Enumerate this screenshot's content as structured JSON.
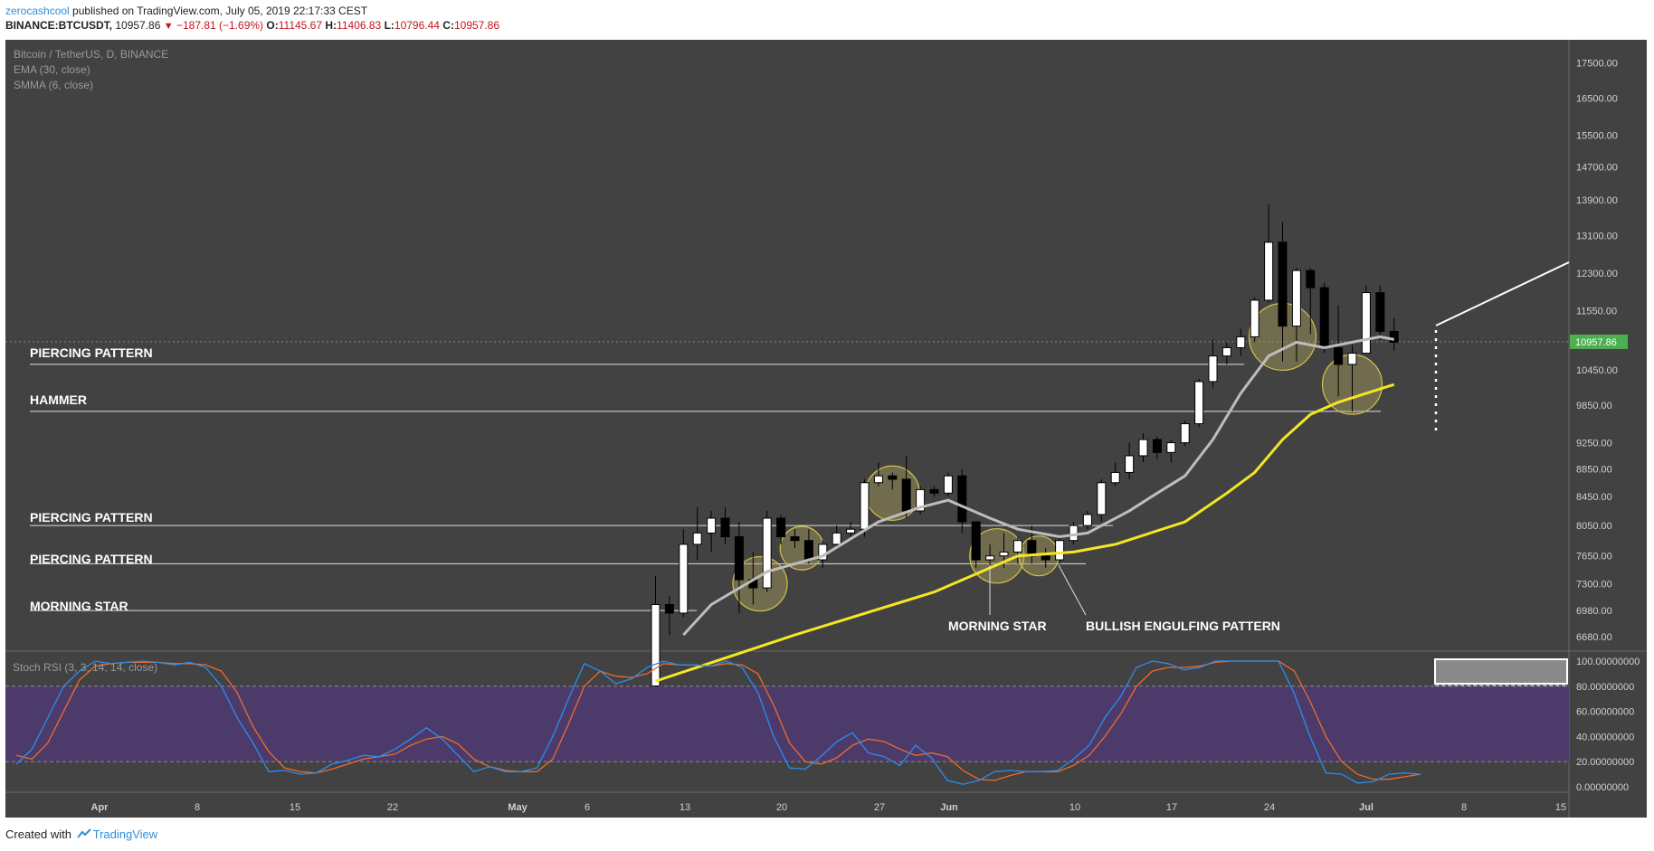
{
  "header": {
    "author": "zerocashcool",
    "published_text": " published on TradingView.com, July 05, 2019 22:17:33 CEST",
    "symbol": "BINANCE:BTCUSDT,",
    "last": "10957.86",
    "change": "−187.81 (−1.69%)",
    "o_label": "O:",
    "o": "11145.67",
    "h_label": "H:",
    "h": "11406.83",
    "l_label": "L:",
    "l": "10796.44",
    "c_label": "C:",
    "c": "10957.86"
  },
  "legend": {
    "title": "Bitcoin / TetherUS, D, BINANCE",
    "ema": "EMA (30, close)",
    "smma": "SMMA (6, close)",
    "stoch": "Stoch RSI (3, 3, 14, 14, close)"
  },
  "annotations": {
    "piercing1": "PIERCING PATTERN",
    "hammer": "HAMMER",
    "piercing2": "PIERCING PATTERN",
    "piercing3": "PIERCING PATTERN",
    "morning_star_left": "MORNING STAR",
    "morning_star_bottom": "MORNING STAR",
    "bullish_engulfing": "BULLISH ENGULFING PATTERN"
  },
  "price_badge": "10957.86",
  "footer": {
    "created_with": "Created with",
    "brand": "TradingView"
  },
  "colors": {
    "panel_bg": "#424242",
    "candle_up": "#ffffff",
    "candle_down": "#000000",
    "ema": "#f5e625",
    "smma": "#bdbdbd",
    "stoch_k": "#2c8cf0",
    "stoch_d": "#f06a2a",
    "stoch_band": "#4c3b6a",
    "badge": "#4caf50",
    "circle_fill": "rgba(170,160,90,0.45)",
    "circle_stroke": "#d4c24a"
  },
  "chart_data": {
    "type": "candlestick",
    "title": "Bitcoin / TetherUS, D, BINANCE",
    "price_axis": {
      "ticks": [
        "17500.00",
        "16500.00",
        "15500.00",
        "14700.00",
        "13900.00",
        "13100.00",
        "12300.00",
        "11550.00",
        "10450.00",
        "9850.00",
        "9250.00",
        "8850.00",
        "8450.00",
        "8050.00",
        "7650.00",
        "7300.00",
        "6980.00",
        "6680.00"
      ],
      "scale": "log",
      "range": [
        6650,
        17700
      ]
    },
    "stoch_axis": {
      "ticks": [
        "100.00000000",
        "80.00000000",
        "60.00000000",
        "40.00000000",
        "20.00000000",
        "0.00000000"
      ],
      "range": [
        0,
        100
      ]
    },
    "time_axis": [
      "Apr",
      "8",
      "15",
      "22",
      "May",
      "6",
      "13",
      "20",
      "27",
      "Jun",
      "10",
      "17",
      "24",
      "Jul",
      "8",
      "15"
    ],
    "candles_start": "2019-05-10",
    "candles": [
      {
        "o": 6150,
        "h": 7400,
        "l": 6150,
        "c": 7050
      },
      {
        "o": 7050,
        "h": 7150,
        "l": 6700,
        "c": 6950
      },
      {
        "o": 6950,
        "h": 8000,
        "l": 6900,
        "c": 7800
      },
      {
        "o": 7800,
        "h": 8300,
        "l": 7600,
        "c": 7950
      },
      {
        "o": 7950,
        "h": 8250,
        "l": 7700,
        "c": 8150
      },
      {
        "o": 8150,
        "h": 8300,
        "l": 7800,
        "c": 7900
      },
      {
        "o": 7900,
        "h": 8100,
        "l": 6950,
        "c": 7350
      },
      {
        "o": 7350,
        "h": 7700,
        "l": 7050,
        "c": 7250
      },
      {
        "o": 7250,
        "h": 8250,
        "l": 7200,
        "c": 8150
      },
      {
        "o": 8150,
        "h": 8200,
        "l": 7800,
        "c": 7900
      },
      {
        "o": 7900,
        "h": 8000,
        "l": 7750,
        "c": 7850
      },
      {
        "o": 7850,
        "h": 8000,
        "l": 7550,
        "c": 7600
      },
      {
        "o": 7600,
        "h": 7850,
        "l": 7500,
        "c": 7800
      },
      {
        "o": 7800,
        "h": 8050,
        "l": 7750,
        "c": 7950
      },
      {
        "o": 7950,
        "h": 8100,
        "l": 7900,
        "c": 8000
      },
      {
        "o": 8000,
        "h": 8700,
        "l": 7900,
        "c": 8650
      },
      {
        "o": 8650,
        "h": 8950,
        "l": 8600,
        "c": 8750
      },
      {
        "o": 8750,
        "h": 8800,
        "l": 8550,
        "c": 8700
      },
      {
        "o": 8700,
        "h": 9050,
        "l": 8150,
        "c": 8250
      },
      {
        "o": 8250,
        "h": 8600,
        "l": 8200,
        "c": 8550
      },
      {
        "o": 8550,
        "h": 8600,
        "l": 8450,
        "c": 8500
      },
      {
        "o": 8500,
        "h": 8800,
        "l": 8450,
        "c": 8750
      },
      {
        "o": 8750,
        "h": 8850,
        "l": 7950,
        "c": 8100
      },
      {
        "o": 8100,
        "h": 8100,
        "l": 7500,
        "c": 7600
      },
      {
        "o": 7600,
        "h": 7800,
        "l": 7450,
        "c": 7650
      },
      {
        "o": 7650,
        "h": 7950,
        "l": 7500,
        "c": 7700
      },
      {
        "o": 7700,
        "h": 7900,
        "l": 7550,
        "c": 7850
      },
      {
        "o": 7850,
        "h": 8050,
        "l": 7550,
        "c": 7650
      },
      {
        "o": 7650,
        "h": 7750,
        "l": 7500,
        "c": 7600
      },
      {
        "o": 7600,
        "h": 7900,
        "l": 7550,
        "c": 7850
      },
      {
        "o": 7850,
        "h": 8100,
        "l": 7800,
        "c": 8050
      },
      {
        "o": 8050,
        "h": 8250,
        "l": 8000,
        "c": 8200
      },
      {
        "o": 8200,
        "h": 8700,
        "l": 8100,
        "c": 8650
      },
      {
        "o": 8650,
        "h": 8950,
        "l": 8600,
        "c": 8800
      },
      {
        "o": 8800,
        "h": 9250,
        "l": 8700,
        "c": 9050
      },
      {
        "o": 9050,
        "h": 9400,
        "l": 8950,
        "c": 9300
      },
      {
        "o": 9300,
        "h": 9350,
        "l": 9000,
        "c": 9100
      },
      {
        "o": 9100,
        "h": 9300,
        "l": 8950,
        "c": 9250
      },
      {
        "o": 9250,
        "h": 9600,
        "l": 9200,
        "c": 9550
      },
      {
        "o": 9550,
        "h": 10300,
        "l": 9500,
        "c": 10250
      },
      {
        "o": 10250,
        "h": 11000,
        "l": 10150,
        "c": 10700
      },
      {
        "o": 10700,
        "h": 10950,
        "l": 10550,
        "c": 10850
      },
      {
        "o": 10850,
        "h": 11200,
        "l": 10700,
        "c": 11050
      },
      {
        "o": 11050,
        "h": 11800,
        "l": 10950,
        "c": 11750
      },
      {
        "o": 11750,
        "h": 13800,
        "l": 11700,
        "c": 12950
      },
      {
        "o": 12950,
        "h": 13400,
        "l": 10600,
        "c": 11250
      },
      {
        "o": 11250,
        "h": 12400,
        "l": 10600,
        "c": 12350
      },
      {
        "o": 12350,
        "h": 12400,
        "l": 11100,
        "c": 12000
      },
      {
        "o": 12000,
        "h": 12100,
        "l": 10750,
        "c": 10850
      },
      {
        "o": 10850,
        "h": 11650,
        "l": 10000,
        "c": 10550
      },
      {
        "o": 10550,
        "h": 10900,
        "l": 9750,
        "c": 10750
      },
      {
        "o": 10750,
        "h": 12050,
        "l": 10750,
        "c": 11900
      },
      {
        "o": 11900,
        "h": 12050,
        "l": 11000,
        "c": 11150
      },
      {
        "o": 11150,
        "h": 11400,
        "l": 10800,
        "c": 10950
      }
    ],
    "ema_30": [
      [
        0,
        6200
      ],
      [
        10,
        6700
      ],
      [
        20,
        7200
      ],
      [
        26,
        7650
      ],
      [
        30,
        7700
      ],
      [
        33,
        7800
      ],
      [
        38,
        8100
      ],
      [
        41,
        8500
      ],
      [
        43,
        8800
      ],
      [
        45,
        9300
      ],
      [
        47,
        9700
      ],
      [
        49,
        9900
      ],
      [
        51,
        10050
      ],
      [
        53,
        10200
      ]
    ],
    "smma_6": [
      [
        2,
        6700
      ],
      [
        4,
        7050
      ],
      [
        8,
        7450
      ],
      [
        12,
        7650
      ],
      [
        16,
        8100
      ],
      [
        19,
        8300
      ],
      [
        21,
        8400
      ],
      [
        24,
        8150
      ],
      [
        26,
        8000
      ],
      [
        29,
        7900
      ],
      [
        31,
        7950
      ],
      [
        34,
        8250
      ],
      [
        36,
        8500
      ],
      [
        38,
        8750
      ],
      [
        40,
        9300
      ],
      [
        42,
        10050
      ],
      [
        44,
        10700
      ],
      [
        46,
        10950
      ],
      [
        48,
        10850
      ],
      [
        50,
        10950
      ],
      [
        52,
        11050
      ],
      [
        53,
        11000
      ]
    ],
    "stoch_rsi_k": [
      18,
      30,
      55,
      80,
      92,
      100,
      98,
      99,
      100,
      99,
      97,
      99,
      95,
      80,
      55,
      35,
      12,
      13,
      10,
      11,
      18,
      21,
      25,
      24,
      30,
      38,
      47,
      38,
      25,
      12,
      16,
      12,
      12,
      15,
      40,
      70,
      98,
      92,
      82,
      86,
      95,
      100,
      97,
      97,
      96,
      100,
      95,
      75,
      40,
      15,
      14,
      24,
      36,
      43,
      27,
      24,
      17,
      33,
      23,
      5,
      2,
      5,
      12,
      13,
      12,
      12,
      13,
      22,
      33,
      55,
      72,
      95,
      100,
      98,
      93,
      95,
      100,
      100,
      100,
      100,
      100,
      74,
      40,
      11,
      10,
      3,
      4,
      10,
      11,
      10
    ],
    "stoch_rsi_d": [
      25,
      22,
      35,
      60,
      85,
      96,
      98,
      99,
      99,
      99,
      98,
      98,
      97,
      92,
      75,
      48,
      28,
      15,
      12,
      11,
      14,
      18,
      22,
      24,
      26,
      33,
      38,
      40,
      34,
      22,
      16,
      13,
      12,
      12,
      22,
      50,
      80,
      92,
      88,
      87,
      90,
      98,
      97,
      97,
      96,
      98,
      97,
      90,
      65,
      35,
      20,
      18,
      23,
      33,
      38,
      36,
      30,
      25,
      27,
      24,
      13,
      6,
      5,
      9,
      12,
      12,
      12,
      17,
      25,
      40,
      58,
      80,
      92,
      95,
      95,
      96,
      99,
      100,
      100,
      100,
      100,
      92,
      68,
      40,
      20,
      10,
      6,
      6,
      8,
      10
    ],
    "horizontal_levels": [
      10550,
      9750,
      8050,
      7550,
      6980
    ],
    "current_price": 10957.86
  }
}
